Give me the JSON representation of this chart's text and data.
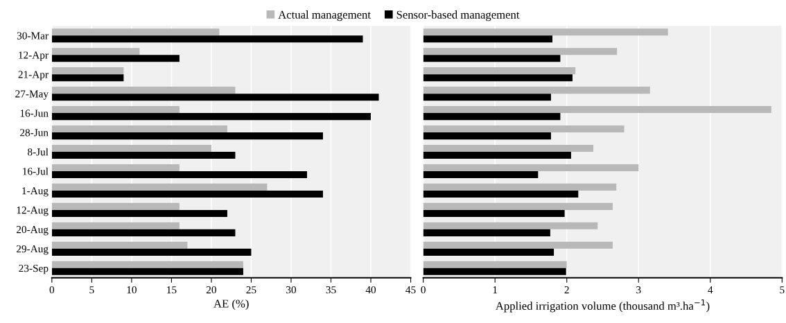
{
  "chart_data": [
    {
      "type": "bar",
      "orientation": "horizontal",
      "xlabel": "AE (%)",
      "categories": [
        "30-Mar",
        "12-Apr",
        "21-Apr",
        "27-May",
        "16-Jun",
        "28-Jun",
        "8-Jul",
        "16-Jul",
        "1-Aug",
        "12-Aug",
        "20-Aug",
        "29-Aug",
        "23-Sep"
      ],
      "series": [
        {
          "name": "Actual management",
          "color": "#b8b8b8",
          "values": [
            21,
            11,
            9,
            23,
            16,
            22,
            20,
            16,
            27,
            16,
            16,
            17,
            24
          ]
        },
        {
          "name": "Sensor-based management",
          "color": "#000000",
          "values": [
            39,
            16,
            9,
            41,
            40,
            34,
            23,
            32,
            34,
            22,
            23,
            25,
            24
          ]
        }
      ],
      "xlim": [
        0,
        45
      ],
      "xticks": [
        0,
        5,
        10,
        15,
        20,
        25,
        30,
        35,
        40,
        45
      ],
      "grid": "x",
      "legend": "top"
    },
    {
      "type": "bar",
      "orientation": "horizontal",
      "xlabel": "Applied irrigation volume (thousand m³.ha$^{−1}$)",
      "categories": [
        null,
        null,
        null,
        null,
        null,
        null,
        null,
        null,
        null,
        null,
        null,
        null,
        null
      ],
      "series": [
        {
          "color": "#b8b8b8",
          "values": [
            3.41,
            2.7,
            2.12,
            3.16,
            4.85,
            2.8,
            2.37,
            3.0,
            2.69,
            2.64,
            2.43,
            2.64,
            2.0
          ]
        },
        {
          "color": "#000000",
          "values": [
            1.8,
            1.91,
            2.08,
            1.78,
            1.91,
            1.78,
            2.06,
            1.6,
            2.16,
            1.97,
            1.77,
            1.82,
            1.99
          ]
        }
      ],
      "xlim": [
        0,
        5
      ],
      "xticks": [
        0,
        1,
        2,
        3,
        4,
        5
      ],
      "grid": "x",
      "tick_labels": "x"
    }
  ]
}
